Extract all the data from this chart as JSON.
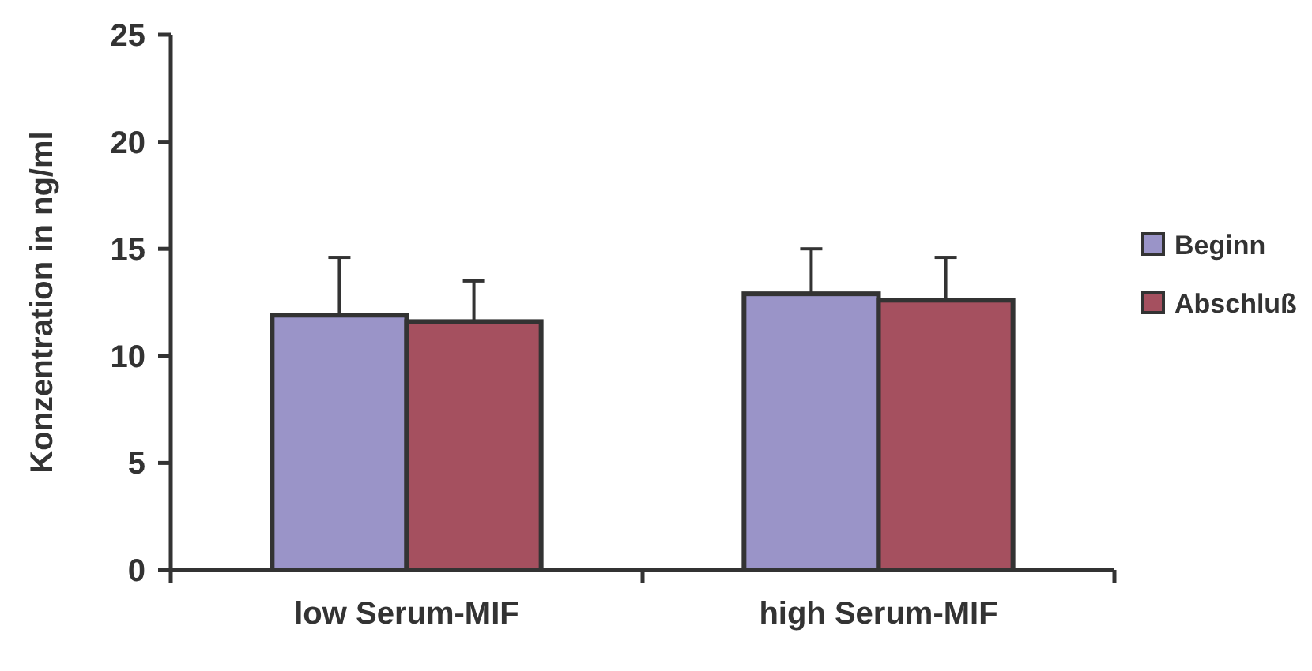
{
  "chart_data": {
    "type": "bar",
    "ylabel": "Konzentration in ng/ml",
    "categories": [
      "low Serum-MIF",
      "high Serum-MIF"
    ],
    "series": [
      {
        "name": "Beginn",
        "color": "#9a94c8",
        "values": [
          11.9,
          12.9
        ],
        "errors": [
          2.7,
          2.1
        ]
      },
      {
        "name": "Abschluß",
        "color": "#a5505f",
        "values": [
          11.6,
          12.6
        ],
        "errors": [
          1.9,
          2.0
        ]
      }
    ],
    "ylim": [
      0,
      25
    ],
    "yticks": [
      0,
      5,
      10,
      15,
      20,
      25
    ],
    "grid": false,
    "legend": "right"
  }
}
